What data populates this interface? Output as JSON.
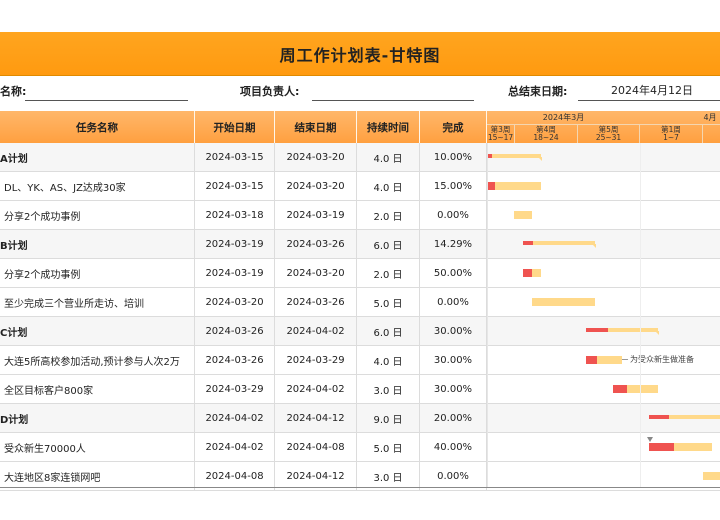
{
  "title": "周工作计划表-甘特图",
  "info": {
    "project_name_label": "名称:",
    "owner_label": "项目负责人:",
    "end_date_label": "总结束日期:",
    "end_date_value": "2024年4月12日"
  },
  "headers": {
    "task": "任务名称",
    "start": "开始日期",
    "end": "结束日期",
    "duration": "持续时间",
    "done": "完成"
  },
  "gantt_head": {
    "month1": "2024年3月",
    "month2": "4月",
    "weeks": [
      {
        "label": "第3周",
        "range": "15~17"
      },
      {
        "label": "第4周",
        "range": "18~24"
      },
      {
        "label": "第5周",
        "range": "25~31"
      },
      {
        "label": "第1周",
        "range": "1~7"
      }
    ]
  },
  "rows": [
    {
      "name": "A计划",
      "start": "2024-03-15",
      "end": "2024-03-20",
      "duration": "4.0 日",
      "done": "10.00%",
      "group": true,
      "plan_start": 0,
      "plan_days": 6,
      "progress": 0.1
    },
    {
      "name": "DL、YK、AS、JZ达成30家",
      "start": "2024-03-15",
      "end": "2024-03-20",
      "duration": "4.0 日",
      "done": "15.00%",
      "group": false,
      "plan_start": 0,
      "plan_days": 6,
      "progress": 0.15
    },
    {
      "name": "分享2个成功事例",
      "start": "2024-03-18",
      "end": "2024-03-19",
      "duration": "2.0 日",
      "done": "0.00%",
      "group": false,
      "plan_start": 3,
      "plan_days": 2,
      "progress": 0
    },
    {
      "name": "B计划",
      "start": "2024-03-19",
      "end": "2024-03-26",
      "duration": "6.0 日",
      "done": "14.29%",
      "group": true,
      "plan_start": 4,
      "plan_days": 8,
      "progress": 0.1429
    },
    {
      "name": "分享2个成功事例",
      "start": "2024-03-19",
      "end": "2024-03-20",
      "duration": "2.0 日",
      "done": "50.00%",
      "group": false,
      "plan_start": 4,
      "plan_days": 2,
      "progress": 0.5
    },
    {
      "name": "至少完成三个营业所走访、培训",
      "start": "2024-03-20",
      "end": "2024-03-26",
      "duration": "5.0 日",
      "done": "0.00%",
      "group": false,
      "plan_start": 5,
      "plan_days": 7,
      "progress": 0
    },
    {
      "name": "C计划",
      "start": "2024-03-26",
      "end": "2024-04-02",
      "duration": "6.0 日",
      "done": "30.00%",
      "group": true,
      "plan_start": 11,
      "plan_days": 8,
      "progress": 0.3
    },
    {
      "name": "大连5所高校参加活动,预计参与人次2万",
      "start": "2024-03-26",
      "end": "2024-03-29",
      "duration": "4.0 日",
      "done": "30.00%",
      "group": false,
      "plan_start": 11,
      "plan_days": 4,
      "progress": 0.3,
      "note": "为受众新生做准备"
    },
    {
      "name": "全区目标客户800家",
      "start": "2024-03-29",
      "end": "2024-04-02",
      "duration": "3.0 日",
      "done": "30.00%",
      "group": false,
      "plan_start": 14,
      "plan_days": 5,
      "progress": 0.3
    },
    {
      "name": "D计划",
      "start": "2024-04-02",
      "end": "2024-04-12",
      "duration": "9.0 日",
      "done": "20.00%",
      "group": true,
      "plan_start": 18,
      "plan_days": 11,
      "progress": 0.2
    },
    {
      "name": "受众新生70000人",
      "start": "2024-04-02",
      "end": "2024-04-08",
      "duration": "5.0 日",
      "done": "40.00%",
      "group": false,
      "plan_start": 18,
      "plan_days": 7,
      "progress": 0.4
    },
    {
      "name": "大连地区8家连锁网吧",
      "start": "2024-04-08",
      "end": "2024-04-12",
      "duration": "3.0 日",
      "done": "0.00%",
      "group": false,
      "plan_start": 24,
      "plan_days": 5,
      "progress": 0
    }
  ],
  "colors": {
    "accent": "#ff9a10",
    "plan": "#ffd98a",
    "progress": "#ef5350"
  }
}
